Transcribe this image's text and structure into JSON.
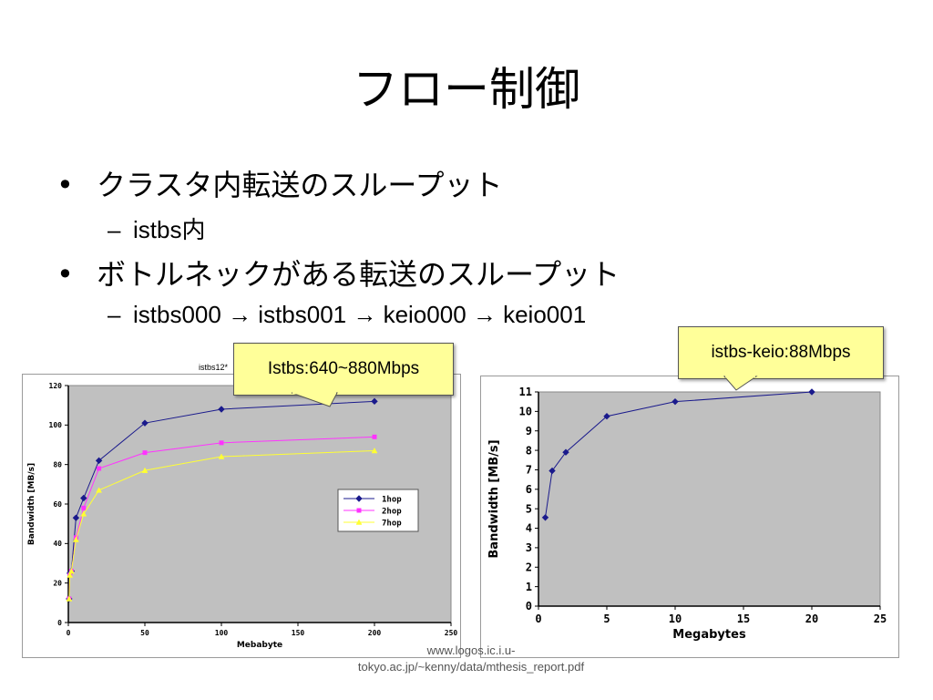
{
  "slide": {
    "title": "フロー制御",
    "bullets": [
      {
        "text": "クラスタ内転送のスループット",
        "sub": "istbs内"
      },
      {
        "text": "ボトルネックがある転送のスループット",
        "sub": "istbs000 → istbs001 → keio000 → keio001"
      }
    ],
    "bullet_glyph": "•",
    "dash_glyph": "–",
    "callout_left": "Istbs:640~880Mbps",
    "callout_right": "istbs-keio:88Mbps",
    "left_chart_caption": "istbs12*",
    "source": "www.logos.ic.i.u-tokyo.ac.jp/~kenny/data/mthesis_report.pdf",
    "colors": {
      "plot_bg": "#c0c0c0",
      "series_1hop": "#1a1a8c",
      "series_2hop": "#ff33ff",
      "series_7hop": "#ffff33",
      "callout": "#ffff99"
    }
  },
  "chart_data": [
    {
      "type": "line",
      "title": "",
      "xlabel": "Mebabyte",
      "ylabel": "Bandwidth [MB/s]",
      "xlim": [
        0,
        250
      ],
      "ylim": [
        0,
        120
      ],
      "xticks": [
        0,
        50,
        100,
        150,
        200,
        250
      ],
      "yticks": [
        0,
        20,
        40,
        60,
        80,
        100,
        120
      ],
      "grid": false,
      "legend": "right",
      "series": [
        {
          "name": "1hop",
          "x": [
            0.5,
            1,
            2,
            5,
            10,
            20,
            50,
            100,
            200
          ],
          "values": [
            12,
            25,
            26,
            53,
            63,
            82,
            101,
            108,
            112
          ]
        },
        {
          "name": "2hop",
          "x": [
            0.5,
            1,
            2,
            5,
            10,
            20,
            50,
            100,
            200
          ],
          "values": [
            12,
            24,
            26,
            43,
            58,
            78,
            86,
            91,
            94
          ]
        },
        {
          "name": "7hop",
          "x": [
            0.5,
            1,
            2,
            5,
            10,
            20,
            50,
            100,
            200
          ],
          "values": [
            12,
            24,
            26,
            42,
            55,
            67,
            77,
            84,
            87
          ]
        }
      ]
    },
    {
      "type": "line",
      "title": "",
      "xlabel": "Megabytes",
      "ylabel": "Bandwidth [MB/s]",
      "xlim": [
        0,
        25
      ],
      "ylim": [
        0,
        11
      ],
      "xticks": [
        0,
        5,
        10,
        15,
        20,
        25
      ],
      "yticks": [
        0,
        1,
        2,
        3,
        4,
        5,
        6,
        7,
        8,
        9,
        10,
        11
      ],
      "grid": false,
      "series": [
        {
          "x": [
            0.5,
            1,
            2,
            5,
            10,
            20
          ],
          "values": [
            4.55,
            6.95,
            7.9,
            9.75,
            10.5,
            11.0
          ]
        }
      ]
    }
  ]
}
